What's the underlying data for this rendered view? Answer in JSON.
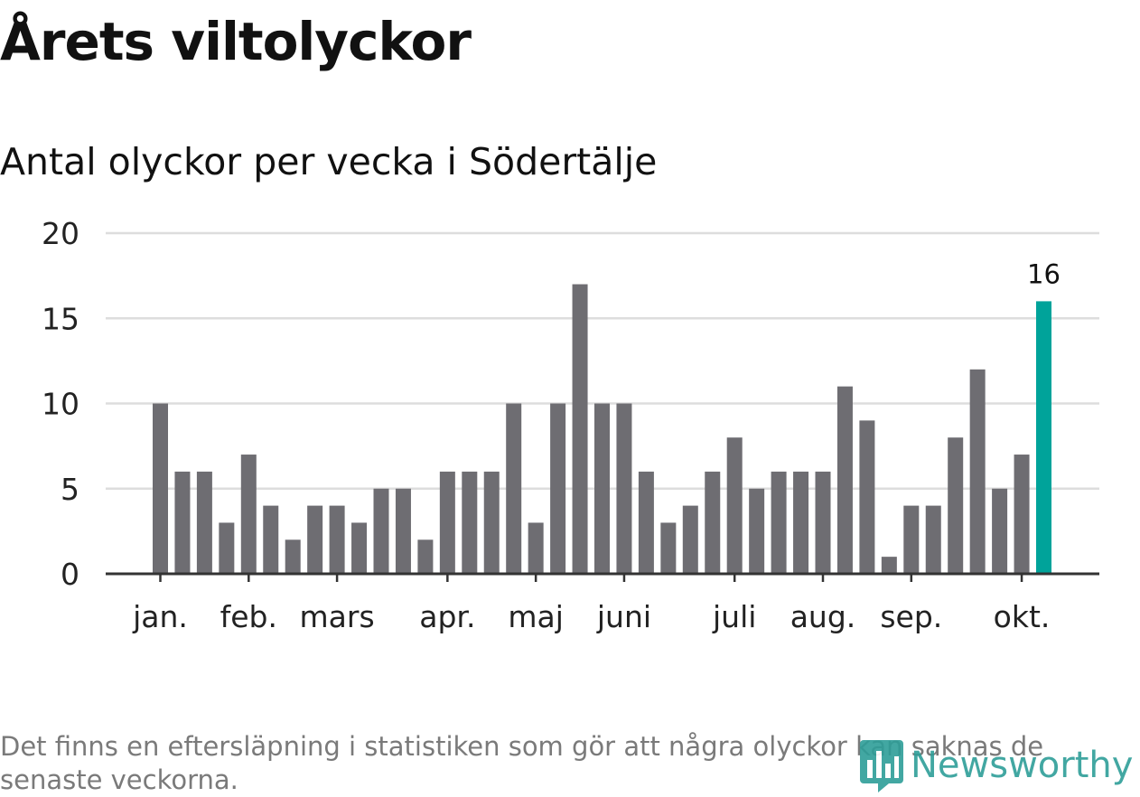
{
  "header": {
    "title": "Årets viltolyckor",
    "subtitle": "Antal olyckor per vecka i Södertälje"
  },
  "chart_data": {
    "type": "bar",
    "title": "Årets viltolyckor",
    "subtitle": "Antal olyckor per vecka i Södertälje",
    "xlabel": "",
    "ylabel": "",
    "ylim": [
      0,
      20
    ],
    "yticks": [
      0,
      5,
      10,
      15,
      20
    ],
    "grid": true,
    "values": [
      10,
      6,
      6,
      3,
      7,
      4,
      2,
      4,
      4,
      3,
      5,
      5,
      2,
      6,
      6,
      6,
      10,
      3,
      10,
      17,
      10,
      10,
      6,
      3,
      4,
      6,
      8,
      5,
      6,
      6,
      6,
      11,
      9,
      1,
      4,
      4,
      8,
      12,
      5,
      7,
      16
    ],
    "month_labels": [
      {
        "label": "jan.",
        "week": 1
      },
      {
        "label": "feb.",
        "week": 5
      },
      {
        "label": "mars",
        "week": 9
      },
      {
        "label": "apr.",
        "week": 14
      },
      {
        "label": "maj",
        "week": 18
      },
      {
        "label": "juni",
        "week": 22
      },
      {
        "label": "juli",
        "week": 27
      },
      {
        "label": "aug.",
        "week": 31
      },
      {
        "label": "sep.",
        "week": 35
      },
      {
        "label": "okt.",
        "week": 40
      }
    ],
    "highlight": {
      "index": 40,
      "label": "16"
    },
    "bar_color": "#6e6d72",
    "highlight_color": "#00a39a",
    "grid_color": "#dddddd",
    "axis_color": "#333333"
  },
  "footer": {
    "note": "Det finns en eftersläpning i statistiken som gör att några olyckor kan saknas de senaste veckorna.",
    "logo_text": "Newsworthy",
    "logo_color": "#2e9e98"
  }
}
